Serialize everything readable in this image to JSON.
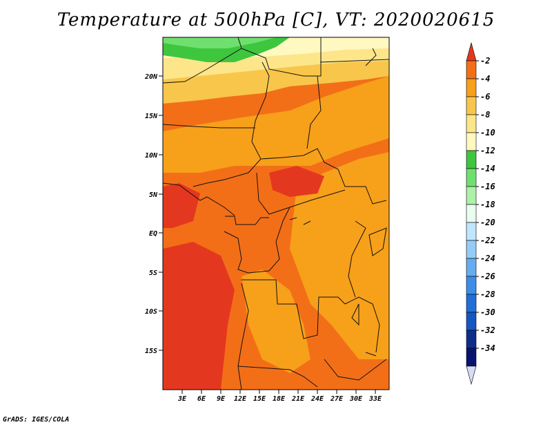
{
  "title": "Temperature at 500hPa [C], VT: 2020020615",
  "credit": "GrADS: IGES/COLA",
  "map": {
    "lat_labels": [
      "20N",
      "15N",
      "10N",
      "5N",
      "EQ",
      "5S",
      "10S",
      "15S"
    ],
    "lon_labels": [
      "3E",
      "6E",
      "9E",
      "12E",
      "15E",
      "18E",
      "21E",
      "24E",
      "27E",
      "30E",
      "33E"
    ]
  },
  "colorbar": {
    "labels": [
      "-2",
      "-4",
      "-6",
      "-8",
      "-10",
      "-12",
      "-14",
      "-16",
      "-18",
      "-20",
      "-22",
      "-24",
      "-26",
      "-28",
      "-30",
      "-32",
      "-34"
    ],
    "colors": [
      "#e3381f",
      "#f26f18",
      "#f7a01a",
      "#f8c64a",
      "#fde58a",
      "#fff8c0",
      "#3ec63e",
      "#6fe06f",
      "#aef0a8",
      "#e8fff0",
      "#bfe6ff",
      "#95ccf7",
      "#66adf0",
      "#3c8ee8",
      "#1f6fd8",
      "#1456c2",
      "#0d2e8a",
      "#0a1270",
      "#d8dcf2"
    ]
  }
}
